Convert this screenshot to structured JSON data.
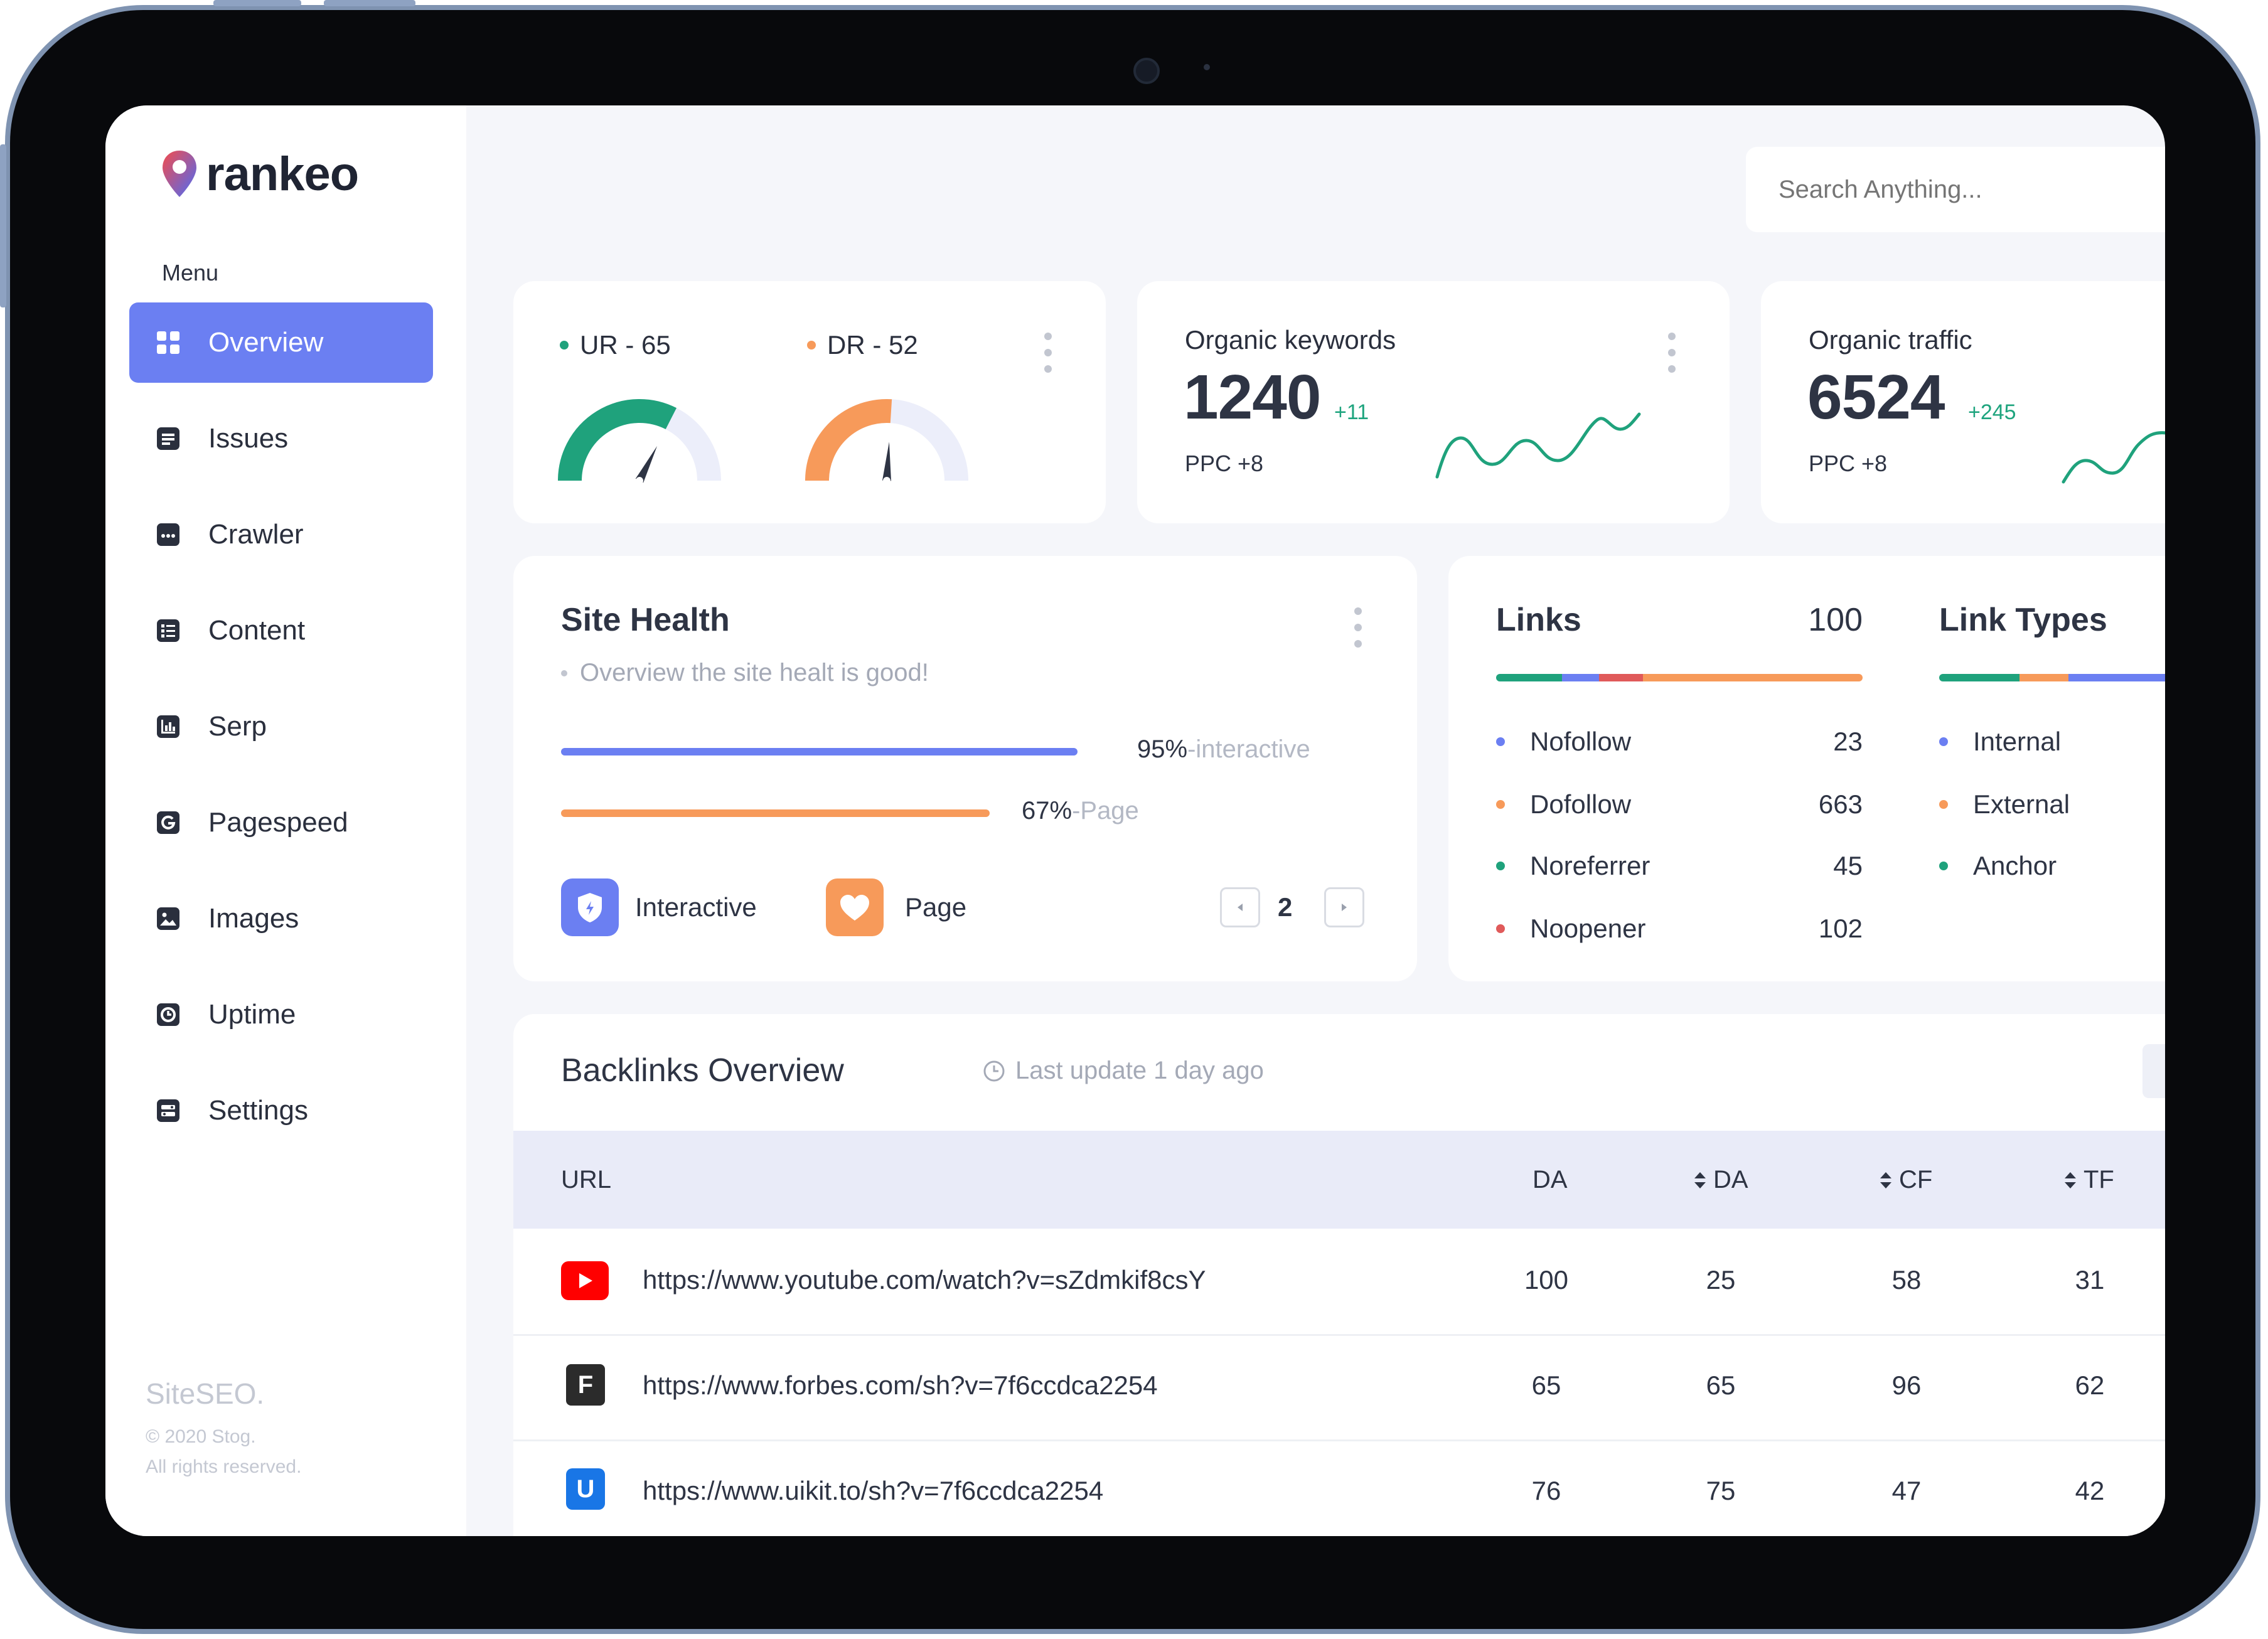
{
  "app": {
    "brand": "rankeo"
  },
  "sidebar": {
    "menu_label": "Menu",
    "items": [
      {
        "label": "Overview",
        "icon": "grid-icon",
        "active": true
      },
      {
        "label": "Issues",
        "icon": "list-icon"
      },
      {
        "label": "Crawler",
        "icon": "dots-icon"
      },
      {
        "label": "Content",
        "icon": "content-icon"
      },
      {
        "label": "Serp",
        "icon": "chart-icon"
      },
      {
        "label": "Pagespeed",
        "icon": "g-icon"
      },
      {
        "label": "Images",
        "icon": "image-icon"
      },
      {
        "label": "Uptime",
        "icon": "clock-icon"
      },
      {
        "label": "Settings",
        "icon": "settings-icon"
      }
    ],
    "footer": {
      "brand": "SiteSEO.",
      "copyright": "© 2020 Stog.",
      "rights": "All rights reserved."
    }
  },
  "search": {
    "placeholder": "Search Anything..."
  },
  "ratings": {
    "ur": {
      "label": "UR - 65",
      "value": 65,
      "color": "#1fa27c"
    },
    "dr": {
      "label": "DR - 52",
      "value": 52,
      "color": "#f79a5a"
    }
  },
  "organic_keywords": {
    "label": "Organic keywords",
    "value": "1240",
    "delta": "+11",
    "ppc": "PPC +8"
  },
  "organic_traffic": {
    "label": "Organic traffic",
    "value": "6524",
    "delta": "+245",
    "ppc": "PPC +8"
  },
  "site_health": {
    "title": "Site Health",
    "subtitle": "Overview the site healt is good!",
    "bars": [
      {
        "percent": "95%",
        "suffix": "-interactive",
        "value": 0.95,
        "color": "#6b7ff2"
      },
      {
        "percent": "67%",
        "suffix": "-Page",
        "value": 0.67,
        "color": "#f79a5a"
      }
    ],
    "legend": [
      {
        "label": "Interactive",
        "icon": "shield-icon",
        "color": "#6b7ff2"
      },
      {
        "label": "Page",
        "icon": "heart-icon",
        "color": "#f79a5a"
      }
    ],
    "page": "2"
  },
  "links": {
    "title": "Links",
    "total": "100",
    "segments": [
      {
        "color": "#1fa27c",
        "share": 0.18
      },
      {
        "color": "#6b7ff2",
        "share": 0.1
      },
      {
        "color": "#e05a5a",
        "share": 0.12
      },
      {
        "color": "#f79a5a",
        "share": 0.6
      }
    ],
    "items": [
      {
        "label": "Nofollow",
        "value": "23",
        "color": "#6b7ff2"
      },
      {
        "label": "Dofollow",
        "value": "663",
        "color": "#f79a5a"
      },
      {
        "label": "Noreferrer",
        "value": "45",
        "color": "#1fa27c"
      },
      {
        "label": "Noopener",
        "value": "102",
        "color": "#e05a5a"
      }
    ]
  },
  "link_types": {
    "title": "Link Types",
    "items": [
      {
        "label": "Internal",
        "color": "#6b7ff2"
      },
      {
        "label": "External",
        "color": "#f79a5a"
      },
      {
        "label": "Anchor",
        "color": "#1fa27c"
      }
    ]
  },
  "backlinks": {
    "title": "Backlinks Overview",
    "updated": "Last update 1 day ago",
    "columns": [
      "URL",
      "DA",
      "DA",
      "CF",
      "TF"
    ],
    "rows": [
      {
        "icon": "youtube-icon",
        "favicon": "",
        "color": "#ff0000",
        "url": "https://www.youtube.com/watch?v=sZdmkif8csY",
        "da": "100",
        "da2": "25",
        "cf": "58",
        "tf": "31"
      },
      {
        "icon": "forbes-icon",
        "favicon": "F",
        "color": "#2b2b2b",
        "url": "https://www.forbes.com/sh?v=7f6ccdca2254",
        "da": "65",
        "da2": "65",
        "cf": "96",
        "tf": "62"
      },
      {
        "icon": "uikit-icon",
        "favicon": "U",
        "color": "#1976e6",
        "url": "https://www.uikit.to/sh?v=7f6ccdca2254",
        "da": "76",
        "da2": "75",
        "cf": "47",
        "tf": "42"
      }
    ]
  }
}
